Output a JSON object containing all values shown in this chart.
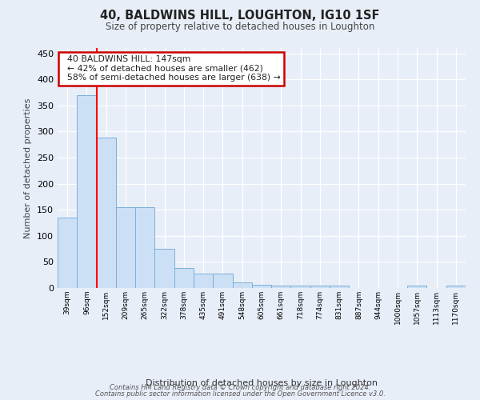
{
  "title": "40, BALDWINS HILL, LOUGHTON, IG10 1SF",
  "subtitle": "Size of property relative to detached houses in Loughton",
  "xlabel": "Distribution of detached houses by size in Loughton",
  "ylabel": "Number of detached properties",
  "bar_labels": [
    "39sqm",
    "96sqm",
    "152sqm",
    "209sqm",
    "265sqm",
    "322sqm",
    "378sqm",
    "435sqm",
    "491sqm",
    "548sqm",
    "605sqm",
    "661sqm",
    "718sqm",
    "774sqm",
    "831sqm",
    "887sqm",
    "944sqm",
    "1000sqm",
    "1057sqm",
    "1113sqm",
    "1170sqm"
  ],
  "bar_values": [
    135,
    370,
    288,
    155,
    155,
    75,
    38,
    27,
    27,
    10,
    6,
    5,
    4,
    4,
    4,
    0,
    0,
    0,
    4,
    0,
    4
  ],
  "bar_color": "#cce0f5",
  "bar_edge_color": "#7ab0d8",
  "highlight_bar_index": 2,
  "highlight_color": "#ff0000",
  "ylim": [
    0,
    460
  ],
  "yticks": [
    0,
    50,
    100,
    150,
    200,
    250,
    300,
    350,
    400,
    450
  ],
  "annotation_text": "  40 BALDWINS HILL: 147sqm\n  ← 42% of detached houses are smaller (462)\n  58% of semi-detached houses are larger (638) →",
  "annotation_box_color": "#ffffff",
  "annotation_box_edge": "#cc0000",
  "bg_color": "#e8eef8",
  "plot_bg_color": "#e8eef8",
  "grid_color": "#ffffff",
  "footer1": "Contains HM Land Registry data © Crown copyright and database right 2024.",
  "footer2": "Contains public sector information licensed under the Open Government Licence v3.0."
}
